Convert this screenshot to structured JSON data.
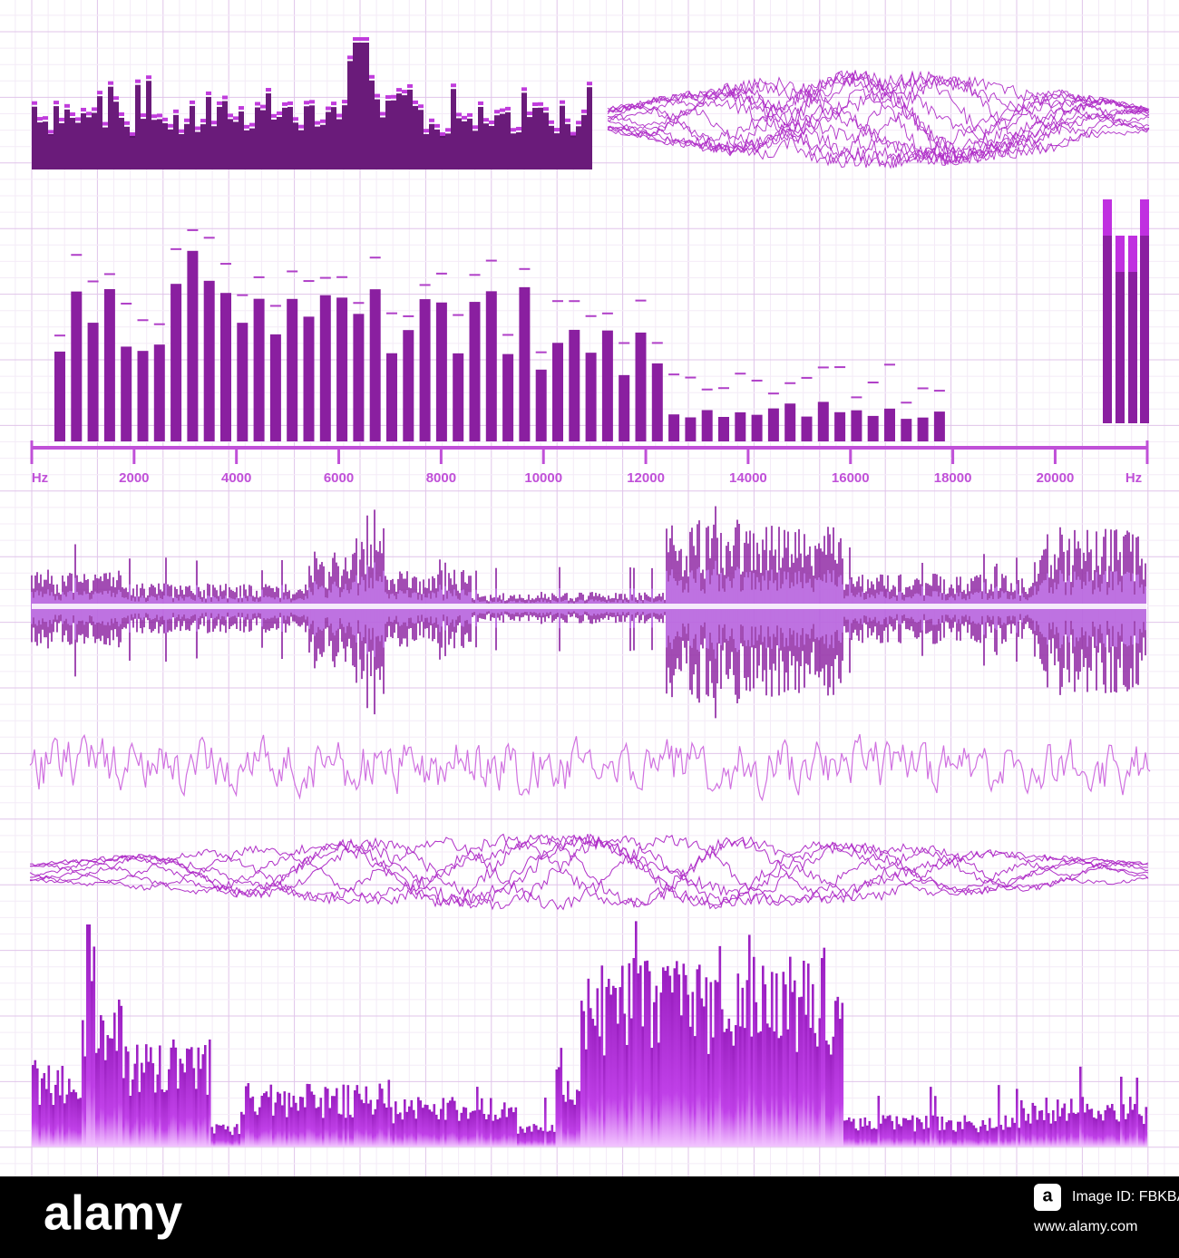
{
  "frequency_axis": {
    "unit": "Hz",
    "xlim": [
      0,
      21800
    ],
    "xticks": [
      2000,
      4000,
      6000,
      8000,
      10000,
      12000,
      14000,
      16000,
      18000,
      20000
    ]
  },
  "watermark": {
    "logo": "alamy",
    "badge": "a",
    "image_id": "Image ID: FBKBAN",
    "url": "www.alamy.com"
  }
}
